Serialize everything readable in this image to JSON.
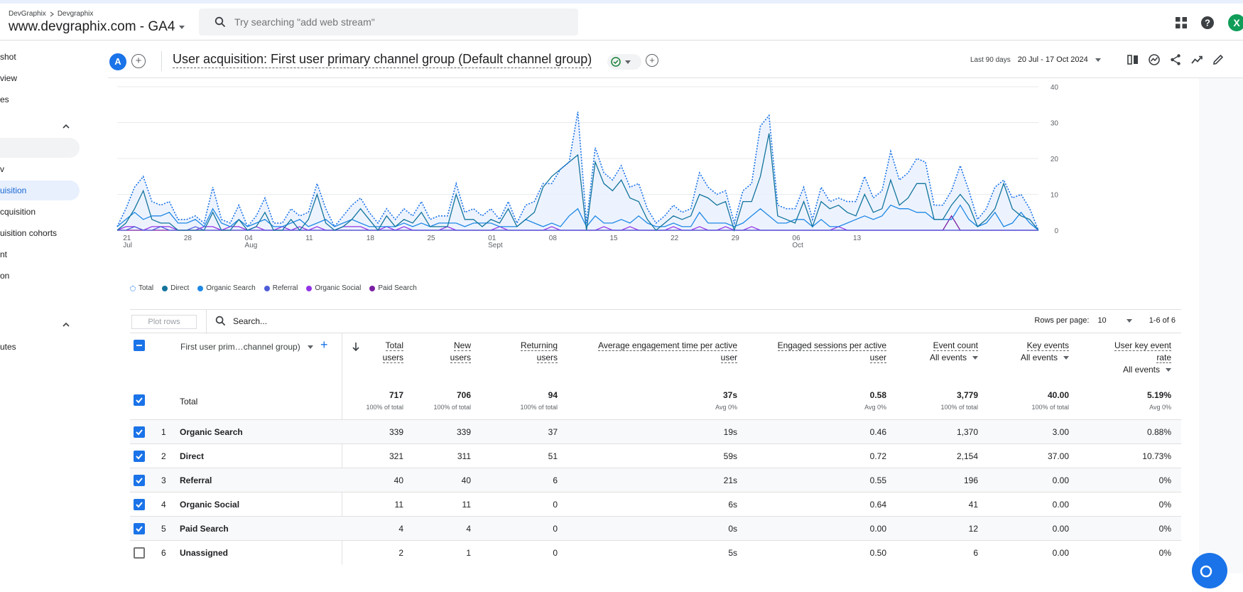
{
  "header": {
    "breadcrumb": [
      "DevGraphix",
      "Devgraphix"
    ],
    "property": "www.devgraphix.com - GA4",
    "search_placeholder": "Try searching \"add web stream\""
  },
  "sidebar": {
    "items": [
      "shot",
      "view",
      "es",
      "",
      "v",
      "uisition",
      "cquisition",
      "uisition cohorts",
      "nt",
      "on",
      "utes"
    ]
  },
  "report": {
    "avatar": "A",
    "title": "User acquisition: First user primary channel group (Default channel group)",
    "date_label": "Last 90 days",
    "date_range": "20 Jul - 17 Oct 2024"
  },
  "chart_data": {
    "type": "line",
    "x_ticks": [
      {
        "day": "21",
        "month": "Jul"
      },
      {
        "day": "28",
        "month": ""
      },
      {
        "day": "04",
        "month": "Aug"
      },
      {
        "day": "11",
        "month": ""
      },
      {
        "day": "18",
        "month": ""
      },
      {
        "day": "25",
        "month": ""
      },
      {
        "day": "01",
        "month": "Sept"
      },
      {
        "day": "08",
        "month": ""
      },
      {
        "day": "15",
        "month": ""
      },
      {
        "day": "22",
        "month": ""
      },
      {
        "day": "29",
        "month": ""
      },
      {
        "day": "06",
        "month": "Oct"
      },
      {
        "day": "13",
        "month": ""
      }
    ],
    "y_ticks": [
      "40",
      "30",
      "20",
      "10",
      "0"
    ],
    "ylim": [
      0,
      40
    ],
    "series": [
      {
        "name": "Total",
        "color": "#1a73e8",
        "values": [
          1,
          6,
          12,
          15,
          8,
          7,
          8,
          3,
          3,
          4,
          2,
          12,
          3,
          2,
          7,
          1,
          4,
          9,
          2,
          2,
          6,
          4,
          5,
          13,
          6,
          1,
          4,
          7,
          9,
          5,
          2,
          6,
          3,
          6,
          4,
          8,
          3,
          4,
          4,
          13,
          5,
          6,
          4,
          6,
          3,
          8,
          2,
          7,
          8,
          13,
          13,
          17,
          19,
          33,
          2,
          23,
          16,
          14,
          18,
          12,
          13,
          6,
          2,
          4,
          7,
          5,
          6,
          16,
          12,
          10,
          11,
          2,
          11,
          13,
          29,
          32,
          7,
          6,
          6,
          12,
          3,
          12,
          8,
          9,
          8,
          8,
          15,
          9,
          11,
          22,
          14,
          16,
          20,
          19,
          7,
          7,
          11,
          18,
          11,
          3,
          6,
          12,
          14,
          9,
          10,
          6,
          0
        ]
      },
      {
        "name": "Direct",
        "color": "#12749c",
        "values": [
          0,
          2,
          6,
          11,
          3,
          2,
          2,
          0,
          0,
          0,
          0,
          5,
          0,
          0,
          3,
          0,
          1,
          5,
          0,
          0,
          3,
          0,
          3,
          10,
          2,
          0,
          1,
          3,
          6,
          3,
          0,
          4,
          1,
          3,
          2,
          5,
          1,
          1,
          1,
          10,
          3,
          3,
          1,
          3,
          2,
          6,
          1,
          3,
          5,
          12,
          15,
          17,
          19,
          21,
          0,
          19,
          13,
          11,
          14,
          9,
          8,
          3,
          0,
          2,
          4,
          3,
          4,
          10,
          9,
          7,
          8,
          0,
          8,
          8,
          15,
          27,
          4,
          3,
          2,
          8,
          1,
          8,
          6,
          7,
          5,
          4,
          10,
          5,
          6,
          14,
          7,
          9,
          13,
          13,
          3,
          3,
          7,
          10,
          7,
          1,
          3,
          6,
          13,
          6,
          4,
          3,
          0
        ]
      },
      {
        "name": "Organic Search",
        "color": "#1e88e5",
        "values": [
          1,
          3,
          5,
          3,
          4,
          4,
          5,
          2,
          2,
          3,
          1,
          6,
          2,
          1,
          3,
          1,
          2,
          3,
          1,
          1,
          2,
          3,
          1,
          2,
          3,
          1,
          2,
          3,
          2,
          1,
          1,
          1,
          1,
          2,
          1,
          2,
          1,
          2,
          2,
          2,
          1,
          2,
          2,
          2,
          1,
          1,
          1,
          3,
          2,
          1,
          2,
          1,
          4,
          6,
          1,
          4,
          2,
          2,
          3,
          2,
          4,
          2,
          1,
          1,
          2,
          1,
          1,
          5,
          2,
          2,
          2,
          1,
          2,
          4,
          6,
          4,
          2,
          2,
          3,
          3,
          1,
          3,
          1,
          1,
          2,
          3,
          4,
          3,
          4,
          7,
          6,
          6,
          5,
          5,
          3,
          3,
          3,
          7,
          3,
          1,
          2,
          5,
          1,
          2,
          5,
          2,
          0
        ]
      },
      {
        "name": "Referral",
        "color": "#4f5dd9",
        "values": [
          0,
          0,
          1,
          0,
          0,
          1,
          0,
          0,
          0,
          1,
          0,
          0,
          0,
          0,
          0,
          0,
          0,
          0,
          0,
          0,
          0,
          0,
          0,
          0,
          0,
          0,
          0,
          0,
          0,
          0,
          0,
          0,
          0,
          0,
          0,
          0,
          0,
          0,
          0,
          0,
          0,
          0,
          0,
          0,
          0,
          0,
          0,
          0,
          0,
          0,
          0,
          0,
          0,
          0,
          0,
          0,
          0,
          0,
          0,
          0,
          0,
          0,
          0,
          0,
          0,
          0,
          0,
          0,
          0,
          0,
          0,
          0,
          0,
          0,
          0,
          0,
          0,
          0,
          0,
          0,
          0,
          0,
          0,
          0,
          0,
          0,
          0,
          0,
          0,
          0,
          0,
          0,
          0,
          0,
          0,
          0,
          0,
          0,
          0,
          0,
          0,
          0,
          0,
          0,
          0,
          0,
          0
        ]
      },
      {
        "name": "Organic Social",
        "color": "#9334e6",
        "values": [
          0,
          1,
          1,
          0,
          1,
          1,
          1,
          0,
          0,
          0,
          1,
          1,
          0,
          1,
          1,
          0,
          1,
          0,
          0,
          1,
          0,
          1,
          0,
          1,
          0,
          0,
          1,
          1,
          1,
          0,
          0,
          1,
          0,
          1,
          0,
          0,
          0,
          0,
          1,
          0,
          0,
          0,
          0,
          0,
          1,
          0,
          0,
          0,
          0,
          0,
          1,
          0,
          0,
          0,
          0,
          0,
          1,
          0,
          0,
          1,
          0,
          0,
          0,
          0,
          1,
          0,
          0,
          1,
          0,
          0,
          1,
          0,
          0,
          1,
          0,
          0,
          0,
          0,
          0,
          0,
          0,
          0,
          0,
          1,
          0,
          0,
          0,
          0,
          0,
          0,
          0,
          0,
          0,
          0,
          0,
          0,
          0,
          0,
          0,
          0,
          0,
          0,
          0,
          0,
          0,
          0,
          0
        ]
      },
      {
        "name": "Paid Search",
        "color": "#7b1fa2",
        "values": [
          0,
          0,
          0,
          0,
          0,
          0,
          0,
          0,
          0,
          0,
          0,
          0,
          0,
          0,
          0,
          0,
          0,
          0,
          0,
          0,
          0,
          0,
          0,
          0,
          0,
          0,
          0,
          0,
          0,
          0,
          0,
          0,
          0,
          0,
          0,
          0,
          0,
          0,
          0,
          0,
          0,
          0,
          0,
          0,
          0,
          0,
          0,
          0,
          0,
          0,
          0,
          0,
          0,
          0,
          0,
          0,
          0,
          0,
          0,
          0,
          0,
          0,
          0,
          0,
          0,
          0,
          0,
          0,
          0,
          0,
          0,
          0,
          0,
          0,
          0,
          0,
          0,
          0,
          0,
          0,
          0,
          0,
          0,
          0,
          0,
          0,
          0,
          0,
          0,
          0,
          0,
          0,
          0,
          0,
          0,
          0,
          4,
          0,
          0,
          0,
          0,
          0,
          0,
          0,
          0,
          0,
          0
        ]
      }
    ]
  },
  "table": {
    "plot_rows": "Plot rows",
    "search_placeholder": "Search...",
    "rows_per_page_label": "Rows per page:",
    "rows_per_page": "10",
    "pagination": "1-6 of 6",
    "dimension_header": "First user prim…channel group)",
    "columns": [
      {
        "line1": "Total",
        "line2": "users"
      },
      {
        "line1": "New",
        "line2": "users"
      },
      {
        "line1": "Returning",
        "line2": "users"
      },
      {
        "line1": "Average engagement time per active",
        "line2": "user"
      },
      {
        "line1": "Engaged sessions per active",
        "line2": "user"
      },
      {
        "line1": "Event count",
        "sub": "All events"
      },
      {
        "line1": "Key events",
        "sub": "All events"
      },
      {
        "line1": "User key event",
        "line2": "rate",
        "sub": "All events"
      }
    ],
    "total": {
      "label": "Total",
      "values": [
        "717",
        "706",
        "94",
        "37s",
        "0.58",
        "3,779",
        "40.00",
        "5.19%"
      ],
      "subs": [
        "100% of total",
        "100% of total",
        "100% of total",
        "Avg 0%",
        "Avg 0%",
        "100% of total",
        "100% of total",
        "Avg 0%"
      ]
    },
    "rows": [
      {
        "idx": "1",
        "name": "Organic Search",
        "checked": true,
        "values": [
          "339",
          "339",
          "37",
          "19s",
          "0.46",
          "1,370",
          "3.00",
          "0.88%"
        ]
      },
      {
        "idx": "2",
        "name": "Direct",
        "checked": true,
        "values": [
          "321",
          "311",
          "51",
          "59s",
          "0.72",
          "2,154",
          "37.00",
          "10.73%"
        ]
      },
      {
        "idx": "3",
        "name": "Referral",
        "checked": true,
        "values": [
          "40",
          "40",
          "6",
          "21s",
          "0.55",
          "196",
          "0.00",
          "0%"
        ]
      },
      {
        "idx": "4",
        "name": "Organic Social",
        "checked": true,
        "values": [
          "11",
          "11",
          "0",
          "6s",
          "0.64",
          "41",
          "0.00",
          "0%"
        ]
      },
      {
        "idx": "5",
        "name": "Paid Search",
        "checked": true,
        "values": [
          "4",
          "4",
          "0",
          "0s",
          "0.00",
          "12",
          "0.00",
          "0%"
        ]
      },
      {
        "idx": "6",
        "name": "Unassigned",
        "checked": false,
        "values": [
          "2",
          "1",
          "0",
          "5s",
          "0.50",
          "6",
          "0.00",
          "0%"
        ]
      }
    ]
  }
}
